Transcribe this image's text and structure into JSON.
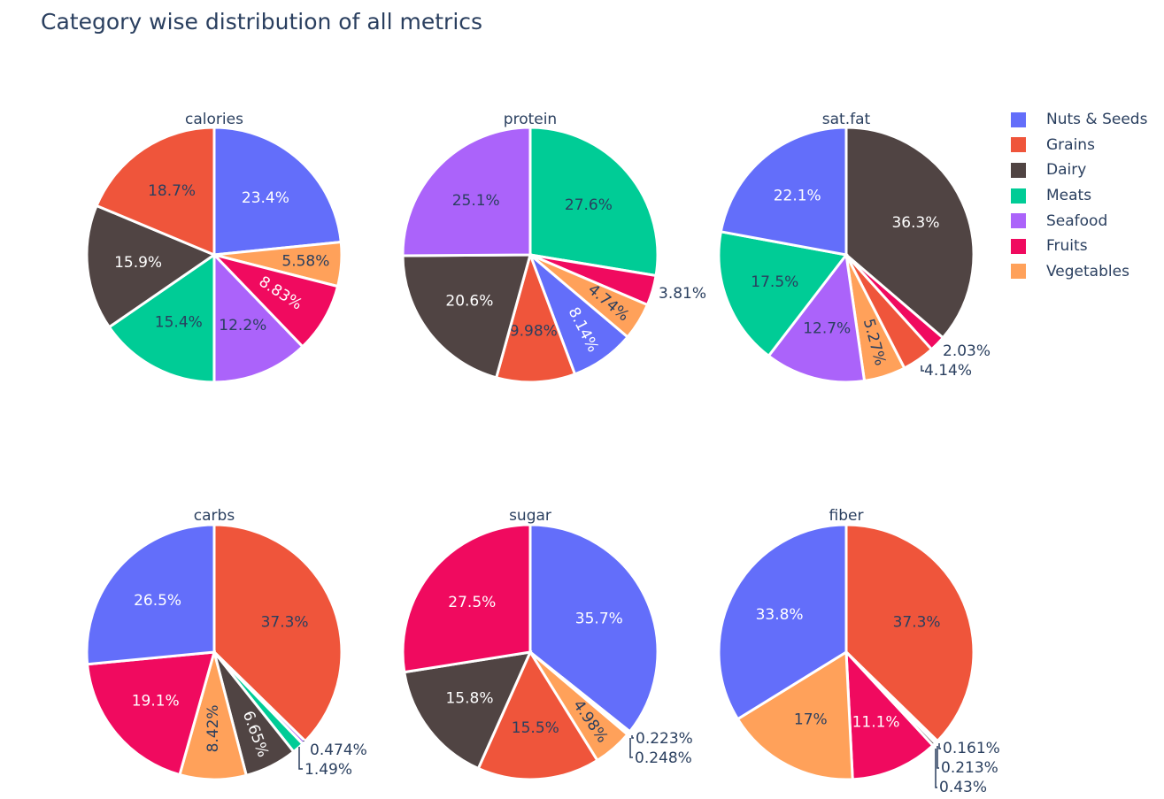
{
  "figure_title": "Category wise distribution of all metrics",
  "colors": {
    "Nuts & Seeds": "#636efa",
    "Grains": "#ef553b",
    "Dairy": "#504443",
    "Meats": "#00cc96",
    "Seafood": "#ab63fa",
    "Fruits": "#f00a5f",
    "Vegetables": "#ffa15a"
  },
  "legend": [
    "Nuts & Seeds",
    "Grains",
    "Dairy",
    "Meats",
    "Seafood",
    "Fruits",
    "Vegetables"
  ],
  "chart_data": [
    {
      "type": "pie",
      "title": "calories",
      "slices": [
        {
          "category": "Nuts & Seeds",
          "value": 23.4,
          "label": "23.4%"
        },
        {
          "category": "Vegetables",
          "value": 5.58,
          "label": "5.58%"
        },
        {
          "category": "Fruits",
          "value": 8.83,
          "label": "8.83%"
        },
        {
          "category": "Seafood",
          "value": 12.2,
          "label": "12.2%"
        },
        {
          "category": "Meats",
          "value": 15.4,
          "label": "15.4%"
        },
        {
          "category": "Dairy",
          "value": 15.9,
          "label": "15.9%"
        },
        {
          "category": "Grains",
          "value": 18.7,
          "label": "18.7%"
        }
      ]
    },
    {
      "type": "pie",
      "title": "protein",
      "slices": [
        {
          "category": "Meats",
          "value": 27.6,
          "label": "27.6%"
        },
        {
          "category": "Fruits",
          "value": 3.81,
          "label": "3.81%"
        },
        {
          "category": "Vegetables",
          "value": 4.74,
          "label": "4.74%"
        },
        {
          "category": "Nuts & Seeds",
          "value": 8.14,
          "label": "8.14%"
        },
        {
          "category": "Grains",
          "value": 9.98,
          "label": "9.98%"
        },
        {
          "category": "Dairy",
          "value": 20.6,
          "label": "20.6%"
        },
        {
          "category": "Seafood",
          "value": 25.1,
          "label": "25.1%"
        }
      ]
    },
    {
      "type": "pie",
      "title": "sat.fat",
      "slices": [
        {
          "category": "Dairy",
          "value": 36.3,
          "label": "36.3%"
        },
        {
          "category": "Fruits",
          "value": 2.03,
          "label": "2.03%"
        },
        {
          "category": "Grains",
          "value": 4.14,
          "label": "4.14%"
        },
        {
          "category": "Vegetables",
          "value": 5.27,
          "label": "5.27%"
        },
        {
          "category": "Seafood",
          "value": 12.7,
          "label": "12.7%"
        },
        {
          "category": "Meats",
          "value": 17.5,
          "label": "17.5%"
        },
        {
          "category": "Nuts & Seeds",
          "value": 22.1,
          "label": "22.1%"
        }
      ]
    },
    {
      "type": "pie",
      "title": "carbs",
      "slices": [
        {
          "category": "Grains",
          "value": 37.3,
          "label": "37.3%"
        },
        {
          "category": "Seafood",
          "value": 0.474,
          "label": "0.474%"
        },
        {
          "category": "Meats",
          "value": 1.49,
          "label": "1.49%"
        },
        {
          "category": "Dairy",
          "value": 6.65,
          "label": "6.65%"
        },
        {
          "category": "Vegetables",
          "value": 8.42,
          "label": "8.42%"
        },
        {
          "category": "Fruits",
          "value": 19.1,
          "label": "19.1%"
        },
        {
          "category": "Nuts & Seeds",
          "value": 26.5,
          "label": "26.5%"
        }
      ]
    },
    {
      "type": "pie",
      "title": "sugar",
      "slices": [
        {
          "category": "Nuts & Seeds",
          "value": 35.7,
          "label": "35.7%"
        },
        {
          "category": "Meats",
          "value": 0.223,
          "label": "0.223%"
        },
        {
          "category": "Seafood",
          "value": 0.248,
          "label": "0.248%"
        },
        {
          "category": "Vegetables",
          "value": 4.98,
          "label": "4.98%"
        },
        {
          "category": "Grains",
          "value": 15.5,
          "label": "15.5%"
        },
        {
          "category": "Dairy",
          "value": 15.8,
          "label": "15.8%"
        },
        {
          "category": "Fruits",
          "value": 27.5,
          "label": "27.5%"
        }
      ]
    },
    {
      "type": "pie",
      "title": "fiber",
      "slices": [
        {
          "category": "Grains",
          "value": 37.3,
          "label": "37.3%"
        },
        {
          "category": "Seafood",
          "value": 0.161,
          "label": "0.161%"
        },
        {
          "category": "Meats",
          "value": 0.213,
          "label": "0.213%"
        },
        {
          "category": "Dairy",
          "value": 0.43,
          "label": "0.43%"
        },
        {
          "category": "Fruits",
          "value": 11.1,
          "label": "11.1%"
        },
        {
          "category": "Vegetables",
          "value": 17,
          "label": "17%"
        },
        {
          "category": "Nuts & Seeds",
          "value": 33.8,
          "label": "33.8%"
        }
      ]
    }
  ]
}
